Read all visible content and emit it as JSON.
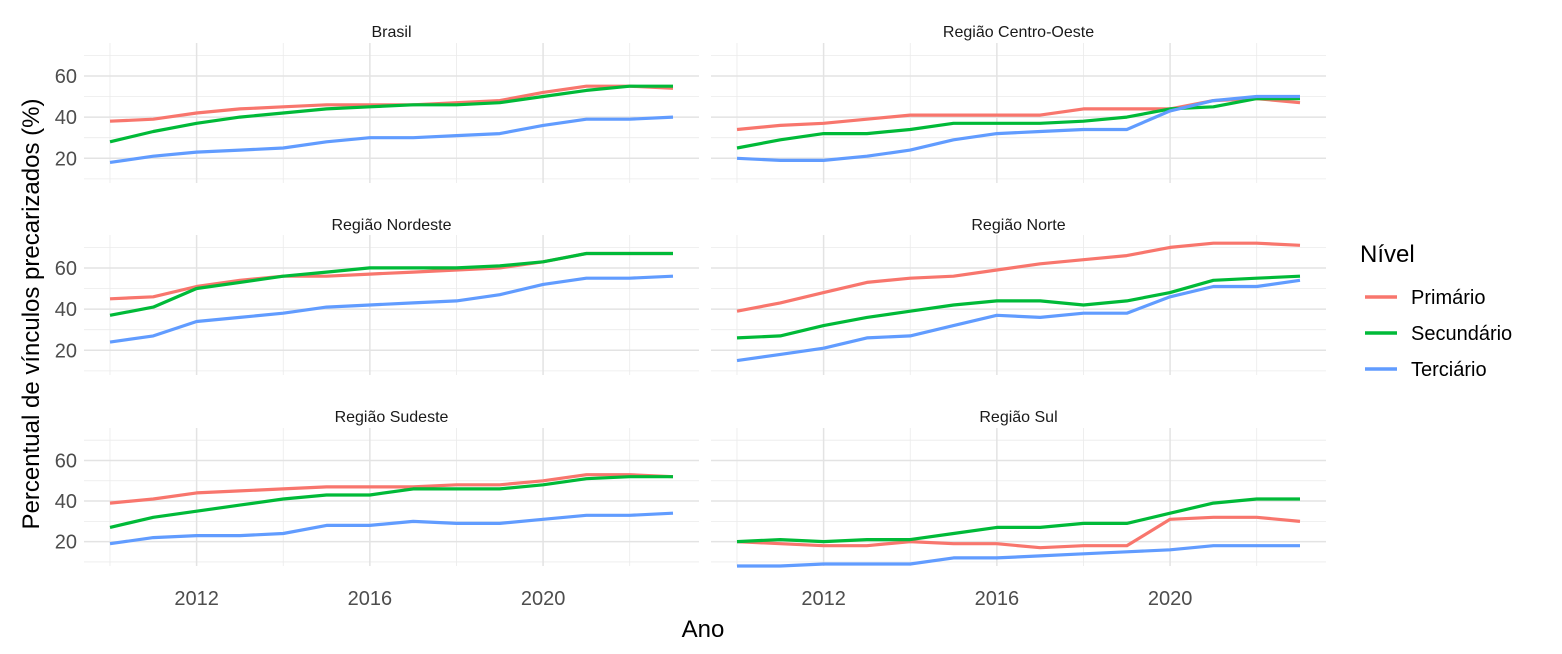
{
  "chart_data": {
    "type": "line",
    "xlabel": "Ano",
    "ylabel": "Percentual de vínculos precarizados (%)",
    "x": [
      2010,
      2011,
      2012,
      2013,
      2014,
      2015,
      2016,
      2017,
      2018,
      2019,
      2020,
      2021,
      2022,
      2023
    ],
    "xlim": [
      2009.4,
      2023.6
    ],
    "ylim": [
      8,
      76
    ],
    "x_ticks": [
      "2012",
      "2016",
      "2020"
    ],
    "y_ticks": [
      "20",
      "40",
      "60"
    ],
    "grid": true,
    "legend": {
      "title": "Nível",
      "position": "right",
      "entries": [
        "Primário",
        "Secundário",
        "Terciário"
      ],
      "colors": [
        "#F8766D",
        "#00BA38",
        "#619CFF"
      ]
    },
    "panels": [
      {
        "title": "Brasil",
        "series": [
          {
            "name": "Primário",
            "values": [
              38,
              39,
              42,
              44,
              45,
              46,
              46,
              46,
              47,
              48,
              52,
              55,
              55,
              54
            ]
          },
          {
            "name": "Secundário",
            "values": [
              28,
              33,
              37,
              40,
              42,
              44,
              45,
              46,
              46,
              47,
              50,
              53,
              55,
              55
            ]
          },
          {
            "name": "Terciário",
            "values": [
              18,
              21,
              23,
              24,
              25,
              28,
              30,
              30,
              31,
              32,
              36,
              39,
              39,
              40
            ]
          }
        ]
      },
      {
        "title": "Região Centro-Oeste",
        "series": [
          {
            "name": "Primário",
            "values": [
              34,
              36,
              37,
              39,
              41,
              41,
              41,
              41,
              44,
              44,
              44,
              48,
              49,
              47
            ]
          },
          {
            "name": "Secundário",
            "values": [
              25,
              29,
              32,
              32,
              34,
              37,
              37,
              37,
              38,
              40,
              44,
              45,
              49,
              49
            ]
          },
          {
            "name": "Terciário",
            "values": [
              20,
              19,
              19,
              21,
              24,
              29,
              32,
              33,
              34,
              34,
              43,
              48,
              50,
              50
            ]
          }
        ]
      },
      {
        "title": "Região Nordeste",
        "series": [
          {
            "name": "Primário",
            "values": [
              45,
              46,
              51,
              54,
              56,
              56,
              57,
              58,
              59,
              60,
              63,
              67,
              67,
              67
            ]
          },
          {
            "name": "Secundário",
            "values": [
              37,
              41,
              50,
              53,
              56,
              58,
              60,
              60,
              60,
              61,
              63,
              67,
              67,
              67
            ]
          },
          {
            "name": "Terciário",
            "values": [
              24,
              27,
              34,
              36,
              38,
              41,
              42,
              43,
              44,
              47,
              52,
              55,
              55,
              56
            ]
          }
        ]
      },
      {
        "title": "Região Norte",
        "series": [
          {
            "name": "Primário",
            "values": [
              39,
              43,
              48,
              53,
              55,
              56,
              59,
              62,
              64,
              66,
              70,
              72,
              72,
              71
            ]
          },
          {
            "name": "Secundário",
            "values": [
              26,
              27,
              32,
              36,
              39,
              42,
              44,
              44,
              42,
              44,
              48,
              54,
              55,
              56
            ]
          },
          {
            "name": "Terciário",
            "values": [
              15,
              18,
              21,
              26,
              27,
              32,
              37,
              36,
              38,
              38,
              46,
              51,
              51,
              54
            ]
          }
        ]
      },
      {
        "title": "Região Sudeste",
        "series": [
          {
            "name": "Primário",
            "values": [
              39,
              41,
              44,
              45,
              46,
              47,
              47,
              47,
              48,
              48,
              50,
              53,
              53,
              52
            ]
          },
          {
            "name": "Secundário",
            "values": [
              27,
              32,
              35,
              38,
              41,
              43,
              43,
              46,
              46,
              46,
              48,
              51,
              52,
              52
            ]
          },
          {
            "name": "Terciário",
            "values": [
              19,
              22,
              23,
              23,
              24,
              28,
              28,
              30,
              29,
              29,
              31,
              33,
              33,
              34
            ]
          }
        ]
      },
      {
        "title": "Região Sul",
        "series": [
          {
            "name": "Primário",
            "values": [
              20,
              19,
              18,
              18,
              20,
              19,
              19,
              17,
              18,
              18,
              31,
              32,
              32,
              30
            ]
          },
          {
            "name": "Secundário",
            "values": [
              20,
              21,
              20,
              21,
              21,
              24,
              27,
              27,
              29,
              29,
              34,
              39,
              41,
              41
            ]
          },
          {
            "name": "Terciário",
            "values": [
              8,
              8,
              9,
              9,
              9,
              12,
              12,
              13,
              14,
              15,
              16,
              18,
              18,
              18
            ]
          }
        ]
      }
    ]
  }
}
